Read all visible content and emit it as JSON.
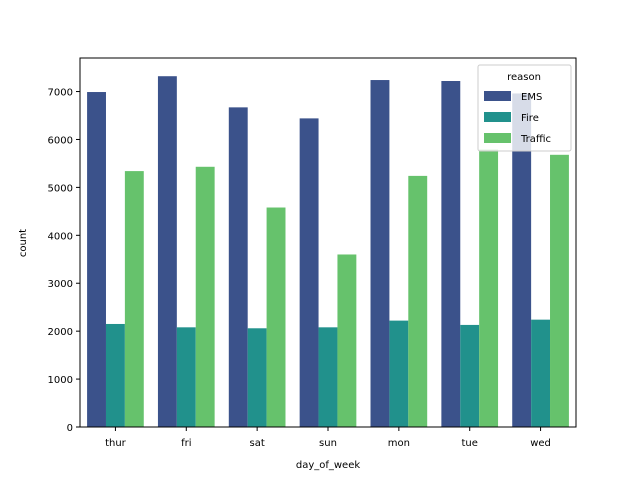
{
  "chart_data": {
    "type": "bar",
    "title": "",
    "xlabel": "day_of_week",
    "ylabel": "count",
    "categories": [
      "thur",
      "fri",
      "sat",
      "sun",
      "mon",
      "tue",
      "wed"
    ],
    "series": [
      {
        "name": "EMS",
        "color": "#3b528b",
        "values": [
          6990,
          7320,
          6670,
          6440,
          7240,
          7220,
          6960
        ]
      },
      {
        "name": "Fire",
        "color": "#21918c",
        "values": [
          2150,
          2080,
          2060,
          2080,
          2220,
          2130,
          2240
        ]
      },
      {
        "name": "Traffic",
        "color": "#66c26c",
        "values": [
          5340,
          5430,
          4580,
          3600,
          5240,
          5790,
          5680
        ]
      }
    ],
    "ylim": [
      0,
      7700
    ],
    "yticks": [
      0,
      1000,
      2000,
      3000,
      4000,
      5000,
      6000,
      7000
    ],
    "ytick_labels": [
      "0",
      "1000",
      "2000",
      "3000",
      "4000",
      "5000",
      "6000",
      "7000"
    ],
    "grid": false,
    "legend": {
      "title": "reason",
      "placement": "top-right"
    }
  }
}
